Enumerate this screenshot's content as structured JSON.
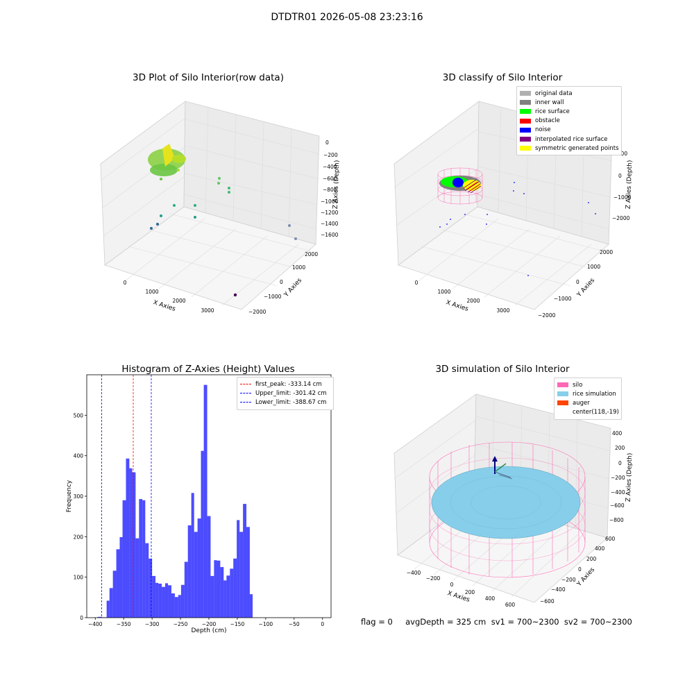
{
  "figure": {
    "suptitle": "DTDTR01 2026-05-08 23:23:16"
  },
  "panels": {
    "raw": {
      "title": "3D Plot of Silo Interior(row data)",
      "xlabel": "X Axies",
      "ylabel": "Y Axies",
      "zlabel": "Z Axies (Depth)",
      "xticks": [
        "0",
        "1000",
        "2000",
        "3000"
      ],
      "yticks": [
        "2000",
        "1000",
        "0",
        "−1000",
        "−2000"
      ],
      "zticks": [
        "0",
        "−200",
        "−400",
        "−600",
        "−800",
        "−1000",
        "−1200",
        "−1400",
        "−1600"
      ]
    },
    "classify": {
      "title": "3D classify of Silo Interior",
      "xlabel": "X Axies",
      "ylabel": "Y Axies",
      "zlabel": "Z Axies (Depth)",
      "xticks": [
        "0",
        "1000",
        "2000",
        "3000"
      ],
      "yticks": [
        "2000",
        "1000",
        "0",
        "−1000",
        "−2000"
      ],
      "zticks": [
        "1000",
        "0",
        "−1000",
        "−2000"
      ],
      "legend": [
        {
          "label": "original data",
          "color": "#b0b0b0"
        },
        {
          "label": "inner wall",
          "color": "#808080"
        },
        {
          "label": "rice surface",
          "color": "#00ff00"
        },
        {
          "label": "obstacle",
          "color": "#ff0000"
        },
        {
          "label": "noise",
          "color": "#0000ff"
        },
        {
          "label": "interpolated rice surface",
          "color": "#800080"
        },
        {
          "label": "symmetric generated points",
          "color": "#ffff00"
        }
      ]
    },
    "simulation": {
      "title": "3D simulation of Silo Interior",
      "xlabel": "X Axies",
      "ylabel": "Y Axies",
      "zlabel": "Z Axies (Depth)",
      "xticks": [
        "−400",
        "−200",
        "0",
        "200",
        "400",
        "600"
      ],
      "yticks": [
        "600",
        "400",
        "200",
        "0",
        "−200",
        "−400",
        "−600"
      ],
      "zticks": [
        "400",
        "200",
        "0",
        "−200",
        "−400",
        "−600",
        "−800"
      ],
      "legend": [
        {
          "label": "silo",
          "color": "#ff69b4"
        },
        {
          "label": "rice simulation",
          "color": "#87ceeb"
        },
        {
          "label": "auger",
          "color": "#ff4500"
        },
        {
          "label": "center(118,-19)",
          "color": ""
        }
      ],
      "footer": "flag = 0     avgDepth = 325 cm  sv1 = 700~2300  sv2 = 700~2300"
    }
  },
  "chart_data": [
    {
      "type": "bar",
      "title": "Histogram of Z-Axies (Height) Values",
      "xlabel": "Depth (cm)",
      "ylabel": "Frequency",
      "xlim": [
        -415,
        15
      ],
      "ylim": [
        0,
        600
      ],
      "xticks": [
        -400,
        -350,
        -300,
        -250,
        -200,
        -150,
        -100,
        -50,
        0
      ],
      "yticks": [
        0,
        100,
        200,
        300,
        400,
        500
      ],
      "bar_color": "#0000ff",
      "bins": [
        {
          "x0": -396,
          "x1": -388,
          "v": 2
        },
        {
          "x0": -388,
          "x1": -380,
          "v": 1
        },
        {
          "x0": -380,
          "x1": -375,
          "v": 42
        },
        {
          "x0": -375,
          "x1": -369,
          "v": 73
        },
        {
          "x0": -369,
          "x1": -363,
          "v": 116
        },
        {
          "x0": -363,
          "x1": -357,
          "v": 169
        },
        {
          "x0": -357,
          "x1": -352,
          "v": 199
        },
        {
          "x0": -352,
          "x1": -346,
          "v": 290
        },
        {
          "x0": -346,
          "x1": -340,
          "v": 393
        },
        {
          "x0": -340,
          "x1": -335,
          "v": 369
        },
        {
          "x0": -335,
          "x1": -329,
          "v": 359
        },
        {
          "x0": -329,
          "x1": -323,
          "v": 196
        },
        {
          "x0": -323,
          "x1": -317,
          "v": 293
        },
        {
          "x0": -317,
          "x1": -312,
          "v": 290
        },
        {
          "x0": -312,
          "x1": -306,
          "v": 184
        },
        {
          "x0": -306,
          "x1": -300,
          "v": 146
        },
        {
          "x0": -300,
          "x1": -294,
          "v": 103
        },
        {
          "x0": -294,
          "x1": -289,
          "v": 86
        },
        {
          "x0": -289,
          "x1": -283,
          "v": 84
        },
        {
          "x0": -283,
          "x1": -277,
          "v": 76
        },
        {
          "x0": -277,
          "x1": -272,
          "v": 85
        },
        {
          "x0": -272,
          "x1": -266,
          "v": 80
        },
        {
          "x0": -266,
          "x1": -260,
          "v": 60
        },
        {
          "x0": -260,
          "x1": -254,
          "v": 51
        },
        {
          "x0": -254,
          "x1": -249,
          "v": 56
        },
        {
          "x0": -249,
          "x1": -243,
          "v": 81
        },
        {
          "x0": -243,
          "x1": -237,
          "v": 138
        },
        {
          "x0": -237,
          "x1": -231,
          "v": 228
        },
        {
          "x0": -231,
          "x1": -226,
          "v": 308
        },
        {
          "x0": -226,
          "x1": -220,
          "v": 212
        },
        {
          "x0": -220,
          "x1": -214,
          "v": 245
        },
        {
          "x0": -214,
          "x1": -209,
          "v": 412
        },
        {
          "x0": -209,
          "x1": -203,
          "v": 575
        },
        {
          "x0": -203,
          "x1": -197,
          "v": 251
        },
        {
          "x0": -197,
          "x1": -191,
          "v": 103
        },
        {
          "x0": -191,
          "x1": -186,
          "v": 142
        },
        {
          "x0": -186,
          "x1": -180,
          "v": 141
        },
        {
          "x0": -180,
          "x1": -174,
          "v": 125
        },
        {
          "x0": -174,
          "x1": -169,
          "v": 92
        },
        {
          "x0": -169,
          "x1": -163,
          "v": 104
        },
        {
          "x0": -163,
          "x1": -157,
          "v": 121
        },
        {
          "x0": -157,
          "x1": -151,
          "v": 146
        },
        {
          "x0": -151,
          "x1": -146,
          "v": 241
        },
        {
          "x0": -146,
          "x1": -140,
          "v": 212
        },
        {
          "x0": -140,
          "x1": -134,
          "v": 281
        },
        {
          "x0": -134,
          "x1": -128,
          "v": 224
        },
        {
          "x0": -128,
          "x1": -123,
          "v": 58
        },
        {
          "x0": -123,
          "x1": -117,
          "v": 0
        },
        {
          "x0": -117,
          "x1": -111,
          "v": 0
        },
        {
          "x0": -111,
          "x1": -106,
          "v": 0
        },
        {
          "x0": -106,
          "x1": -100,
          "v": 0
        },
        {
          "x0": -100,
          "x1": -94,
          "v": 0
        },
        {
          "x0": -94,
          "x1": -88,
          "v": 0
        },
        {
          "x0": -88,
          "x1": -83,
          "v": 0
        },
        {
          "x0": -83,
          "x1": -77,
          "v": 0
        },
        {
          "x0": -77,
          "x1": -71,
          "v": 0
        },
        {
          "x0": -71,
          "x1": -66,
          "v": 0
        },
        {
          "x0": -66,
          "x1": -60,
          "v": 0
        },
        {
          "x0": -60,
          "x1": -54,
          "v": 0
        },
        {
          "x0": -54,
          "x1": -48,
          "v": 0
        },
        {
          "x0": -48,
          "x1": -43,
          "v": 0
        },
        {
          "x0": -43,
          "x1": -37,
          "v": 0
        },
        {
          "x0": -37,
          "x1": -31,
          "v": 0
        },
        {
          "x0": -31,
          "x1": -26,
          "v": 0
        },
        {
          "x0": -26,
          "x1": -20,
          "v": 0
        },
        {
          "x0": -20,
          "x1": -14,
          "v": 0
        },
        {
          "x0": -14,
          "x1": -8,
          "v": 0
        },
        {
          "x0": -8,
          "x1": -3,
          "v": 0
        },
        {
          "x0": -3,
          "x1": 2,
          "v": 0
        }
      ],
      "vlines": [
        {
          "label": "first_peak: -333.14 cm",
          "x": -333.14,
          "color": "#ff0000"
        },
        {
          "label": "Upper_limit: -301.42 cm",
          "x": -301.42,
          "color": "#0000ff"
        },
        {
          "label": "Lower_limit: -388.67 cm",
          "x": -388.67,
          "color": "#0000ff"
        }
      ],
      "legend_position": "top-right"
    }
  ]
}
